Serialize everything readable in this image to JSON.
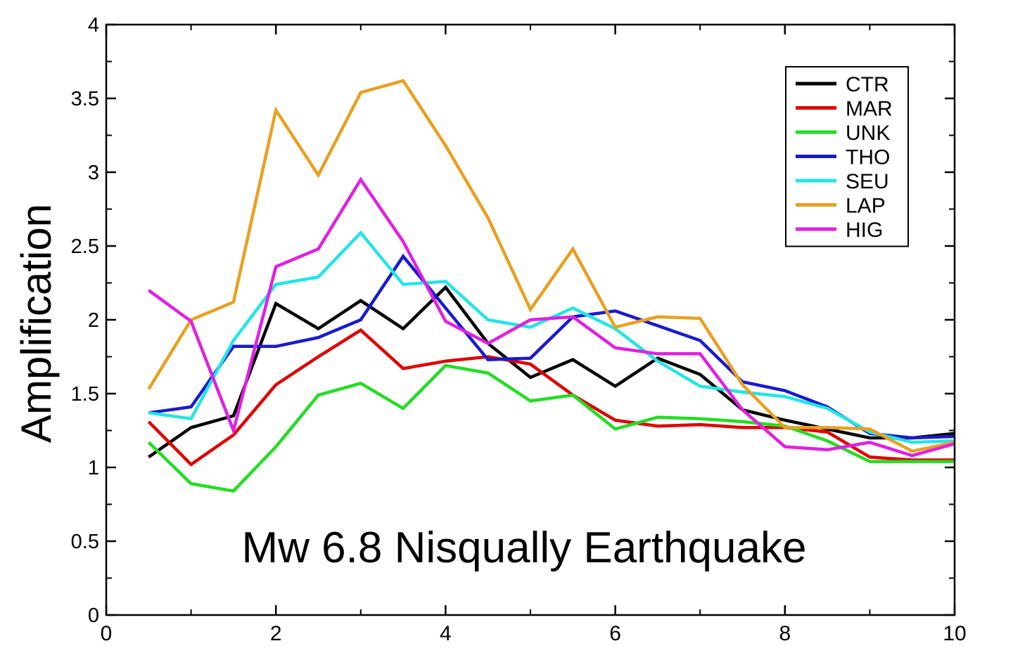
{
  "chart_data": {
    "type": "line",
    "annotation": "Mw 6.8 Nisqually Earthquake",
    "xlabel": "",
    "ylabel": "Amplification",
    "xlim": [
      0,
      10
    ],
    "ylim": [
      0,
      4
    ],
    "xticks": [
      "0",
      "2",
      "4",
      "6",
      "8",
      "10"
    ],
    "yticks": [
      "0",
      "0.5",
      "1",
      "1.5",
      "2",
      "2.5",
      "3",
      "3.5",
      "4"
    ],
    "grid": false,
    "legend_position": "top-right",
    "x": [
      0.5,
      1,
      1.5,
      2,
      2.5,
      3,
      3.5,
      4,
      4.5,
      5,
      5.5,
      6,
      6.5,
      7,
      7.5,
      8,
      8.5,
      9,
      9.5,
      10
    ],
    "series": [
      {
        "name": "CTR",
        "color": "#000000",
        "values": [
          1.07,
          1.27,
          1.35,
          2.11,
          1.94,
          2.13,
          1.94,
          2.22,
          1.84,
          1.61,
          1.73,
          1.55,
          1.74,
          1.63,
          1.39,
          1.32,
          1.26,
          1.2,
          1.2,
          1.23
        ]
      },
      {
        "name": "MAR",
        "color": "#e00000",
        "values": [
          1.31,
          1.02,
          1.22,
          1.56,
          1.75,
          1.93,
          1.67,
          1.72,
          1.75,
          1.7,
          1.49,
          1.32,
          1.28,
          1.29,
          1.27,
          1.27,
          1.24,
          1.07,
          1.05,
          1.05
        ]
      },
      {
        "name": "UNK",
        "color": "#22dd22",
        "values": [
          1.17,
          0.89,
          0.84,
          1.14,
          1.49,
          1.57,
          1.4,
          1.69,
          1.64,
          1.45,
          1.49,
          1.26,
          1.34,
          1.33,
          1.31,
          1.28,
          1.18,
          1.04,
          1.04,
          1.04
        ]
      },
      {
        "name": "THO",
        "color": "#1a1acc",
        "values": [
          1.37,
          1.41,
          1.82,
          1.82,
          1.88,
          2.0,
          2.43,
          2.08,
          1.73,
          1.74,
          2.02,
          2.06,
          1.96,
          1.86,
          1.58,
          1.52,
          1.41,
          1.23,
          1.2,
          1.21
        ]
      },
      {
        "name": "SEU",
        "color": "#22e5e5",
        "values": [
          1.37,
          1.33,
          1.86,
          2.24,
          2.29,
          2.59,
          2.24,
          2.26,
          2.0,
          1.95,
          2.08,
          1.94,
          1.72,
          1.55,
          1.51,
          1.48,
          1.4,
          1.24,
          1.17,
          1.18
        ]
      },
      {
        "name": "LAP",
        "color": "#e8a020",
        "values": [
          1.53,
          2.0,
          2.12,
          3.42,
          2.98,
          3.54,
          3.62,
          3.18,
          2.69,
          2.07,
          2.48,
          1.95,
          2.02,
          2.01,
          1.56,
          1.27,
          1.27,
          1.26,
          1.11,
          1.17
        ]
      },
      {
        "name": "HIG",
        "color": "#e020e0",
        "values": [
          2.2,
          1.99,
          1.25,
          2.36,
          2.48,
          2.95,
          2.53,
          1.99,
          1.84,
          2.0,
          2.02,
          1.81,
          1.77,
          1.77,
          1.39,
          1.14,
          1.12,
          1.17,
          1.08,
          1.16
        ]
      }
    ]
  }
}
